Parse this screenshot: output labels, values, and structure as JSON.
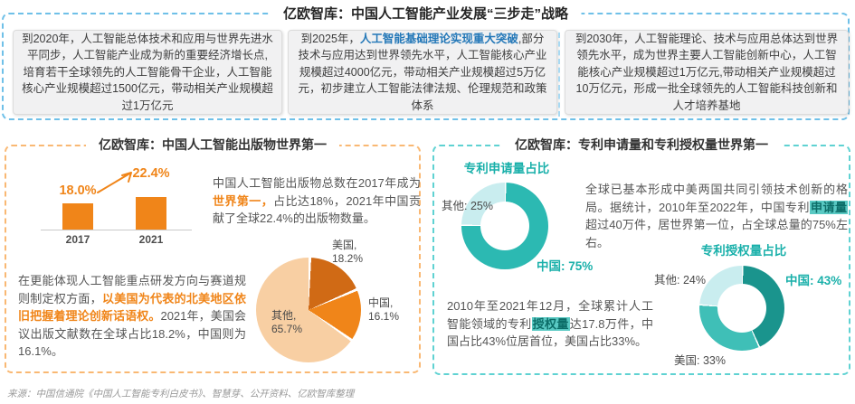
{
  "page": {
    "background": "#ffffff"
  },
  "header": {
    "title": "亿欧智库：中国人工智能产业发展“三步走”战略",
    "accent": "#6fc0e8"
  },
  "strategy_boxes": [
    {
      "segments": [
        {
          "text": "到2020年，人工智能总体技术和应用与世界先进水平同步，人工智能产业成为新的重要经济增长点,培育若干全球领先的人工智能骨干企业，人工智能核心产业规模超过1500亿元，带动相关产业规模超过1万亿元"
        }
      ]
    },
    {
      "segments": [
        {
          "text": "到2025年，"
        },
        {
          "text": "人工智能基础理论实现重大突破",
          "highlight": true
        },
        {
          "text": ",部分技术与应用达到世界领先水平，人工智能核心产业规模超过4000亿元，带动相关产业规模超过5万亿元，初步建立人工智能法律法规、伦理规范和政策体系"
        }
      ]
    },
    {
      "segments": [
        {
          "text": "到2030年，人工智能理论、技术与应用总体达到世界领先水平，成为世界主要人工智能创新中心，人工智能核心产业规模超过1万亿元,带动相关产业规模超过10万亿元，形成一批全球领先的人工智能科技创新和人才培养基地"
        }
      ]
    }
  ],
  "left_section": {
    "title": "亿欧智库：中国人工智能出版物世界第一",
    "accent": "#f08519",
    "paragraph1": [
      {
        "text": "中国人工智能出版物总数在2017年成为"
      },
      {
        "text": "世界第一，",
        "highlight": true
      },
      {
        "text": "占比达18%，2021年中国贡献了全球22.4%的出版物数量。"
      }
    ],
    "paragraph2": [
      {
        "text": "在更能体现人工智能重点研发方向与赛道规则制定权方面，"
      },
      {
        "text": "以美国为代表的北美地区依旧把握着理论创新话语权。",
        "highlight": true
      },
      {
        "text": "2021年，美国会议出版文献数在全球占比18.2%，中国则为16.1%。"
      }
    ]
  },
  "right_section": {
    "title": "亿欧智库：专利申请量和专利授权量世界第一",
    "accent": "#2cbcb4",
    "paragraph1": [
      {
        "text": "全球已基本形成中美两国共同引领技术创新的格局。据统计，2010年至2022年，中国专利"
      },
      {
        "text": "申请量",
        "highlight": true
      },
      {
        "text": "超过40万件，居世界第一位，占全球总量的75%左右。"
      }
    ],
    "paragraph2": [
      {
        "text": "2010年至2021年12月，全球累计人工智能领域的专利"
      },
      {
        "text": "授权量",
        "highlight": true
      },
      {
        "text": "达17.8万件，中国占比43%位居首位，美国占比33%。"
      }
    ]
  },
  "footer": {
    "source": "来源：中国信通院《中国人工智能专利白皮书》、智慧芽、公开资料、亿欧智库整理"
  },
  "chart_data": [
    {
      "type": "bar",
      "categories": [
        "2017",
        "2021"
      ],
      "values": [
        18.0,
        22.4
      ],
      "value_labels": [
        "18.0%",
        "22.4%"
      ],
      "unit": "%",
      "color": "#f08519",
      "ylim": [
        0,
        25
      ],
      "grid": false
    },
    {
      "type": "pie",
      "labels": [
        "美国",
        "中国",
        "其他"
      ],
      "values": [
        18.2,
        16.1,
        65.7
      ],
      "colors": [
        "#d06a15",
        "#f08519",
        "#f8cfa3"
      ],
      "display_labels": [
        "美国,\n18.2%",
        "中国,\n16.1%",
        "其他,\n65.7%"
      ]
    },
    {
      "type": "donut",
      "title": "专利申请量占比",
      "labels": [
        "中国",
        "其他"
      ],
      "values": [
        75,
        25
      ],
      "colors": [
        "#2cb9b2",
        "#c9edef"
      ],
      "display_labels": [
        "中国: 75%",
        "其他: 25%"
      ]
    },
    {
      "type": "donut",
      "title": "专利授权量占比",
      "labels": [
        "中国",
        "美国",
        "其他"
      ],
      "values": [
        43,
        33,
        24
      ],
      "colors": [
        "#1a948d",
        "#3fbfb7",
        "#c9edef"
      ],
      "display_labels": [
        "中国: 43%",
        "美国: 33%",
        "其他: 24%"
      ]
    }
  ]
}
